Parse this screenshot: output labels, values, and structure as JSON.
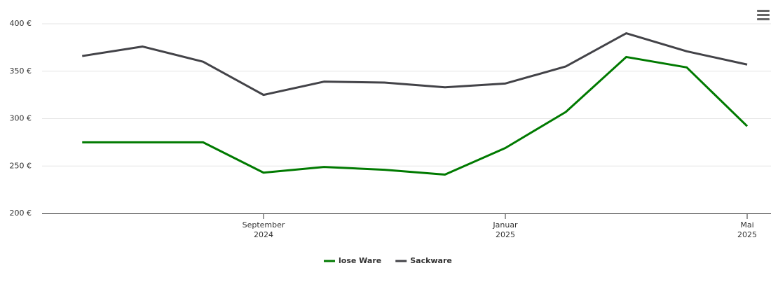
{
  "chart_data": {
    "type": "line",
    "x": [
      "2024-06",
      "2024-07",
      "2024-08",
      "2024-09",
      "2024-10",
      "2024-11",
      "2024-12",
      "2025-01",
      "2025-02",
      "2025-03",
      "2025-04",
      "2025-05"
    ],
    "series": [
      {
        "name": "lose Ware",
        "color": "#007a00",
        "values": [
          275,
          275,
          275,
          243,
          249,
          246,
          241,
          269,
          307,
          365,
          354,
          292
        ]
      },
      {
        "name": "Sackware",
        "color": "#434348",
        "values": [
          366,
          376,
          360,
          325,
          339,
          338,
          333,
          337,
          355,
          390,
          371,
          357
        ]
      }
    ],
    "ylim": [
      200,
      400
    ],
    "yticks": [
      {
        "value": 200,
        "label": "200 €"
      },
      {
        "value": 250,
        "label": "250 €"
      },
      {
        "value": 300,
        "label": "300 €"
      },
      {
        "value": 350,
        "label": "350 €"
      },
      {
        "value": 400,
        "label": "400 €"
      }
    ],
    "xticks": [
      {
        "value": "2024-09",
        "label": "September",
        "sublabel": "2024"
      },
      {
        "value": "2025-01",
        "label": "Januar",
        "sublabel": "2025"
      },
      {
        "value": "2025-05",
        "label": "Mai",
        "sublabel": "2025"
      }
    ],
    "grid": true,
    "legend": "bottom"
  }
}
